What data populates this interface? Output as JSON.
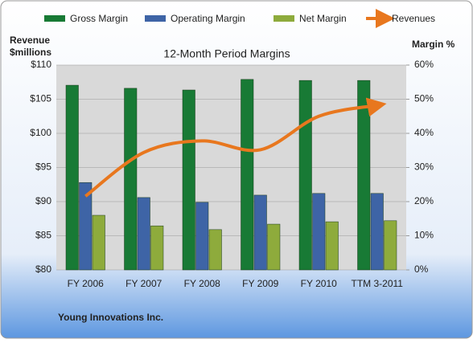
{
  "chart_data": {
    "type": "bar-line",
    "title": "12-Month Period Margins",
    "ylabel": [
      "Revenue",
      "$millions"
    ],
    "y2label": "Margin %",
    "footer": "Young Innovations Inc.",
    "categories": [
      "FY 2006",
      "FY 2007",
      "FY 2008",
      "FY 2009",
      "FY 2010",
      "TTM 3-2011"
    ],
    "ylim": [
      80,
      110
    ],
    "yticks": [
      {
        "value": 80,
        "label": "$80"
      },
      {
        "value": 85,
        "label": "$85"
      },
      {
        "value": 90,
        "label": "$90"
      },
      {
        "value": 95,
        "label": "$95"
      },
      {
        "value": 100,
        "label": "$100"
      },
      {
        "value": 105,
        "label": "$105"
      },
      {
        "value": 110,
        "label": "$110"
      }
    ],
    "y2lim": [
      0,
      60
    ],
    "y2ticks": [
      {
        "value": 0,
        "label": "0%"
      },
      {
        "value": 10,
        "label": "10%"
      },
      {
        "value": 20,
        "label": "20%"
      },
      {
        "value": 30,
        "label": "30%"
      },
      {
        "value": 40,
        "label": "40%"
      },
      {
        "value": 50,
        "label": "50%"
      },
      {
        "value": 60,
        "label": "60%"
      }
    ],
    "grid": true,
    "series": [
      {
        "name": "Gross Margin",
        "type": "bar",
        "axis": "y2",
        "color": "#187a35",
        "values": [
          54.1,
          53.2,
          52.7,
          55.8,
          55.5,
          55.5
        ]
      },
      {
        "name": "Operating Margin",
        "type": "bar",
        "axis": "y2",
        "color": "#3e64a6",
        "values": [
          25.6,
          21.2,
          19.8,
          21.9,
          22.4,
          22.4
        ]
      },
      {
        "name": "Net Margin",
        "type": "bar",
        "axis": "y2",
        "color": "#8eab3c",
        "values": [
          16.0,
          12.9,
          11.8,
          13.4,
          14.1,
          14.4
        ]
      },
      {
        "name": "Revenues",
        "type": "line",
        "color": "#e8771e",
        "values": [
          90.8,
          97.2,
          98.9,
          97.6,
          102.5,
          104.1
        ]
      }
    ]
  }
}
